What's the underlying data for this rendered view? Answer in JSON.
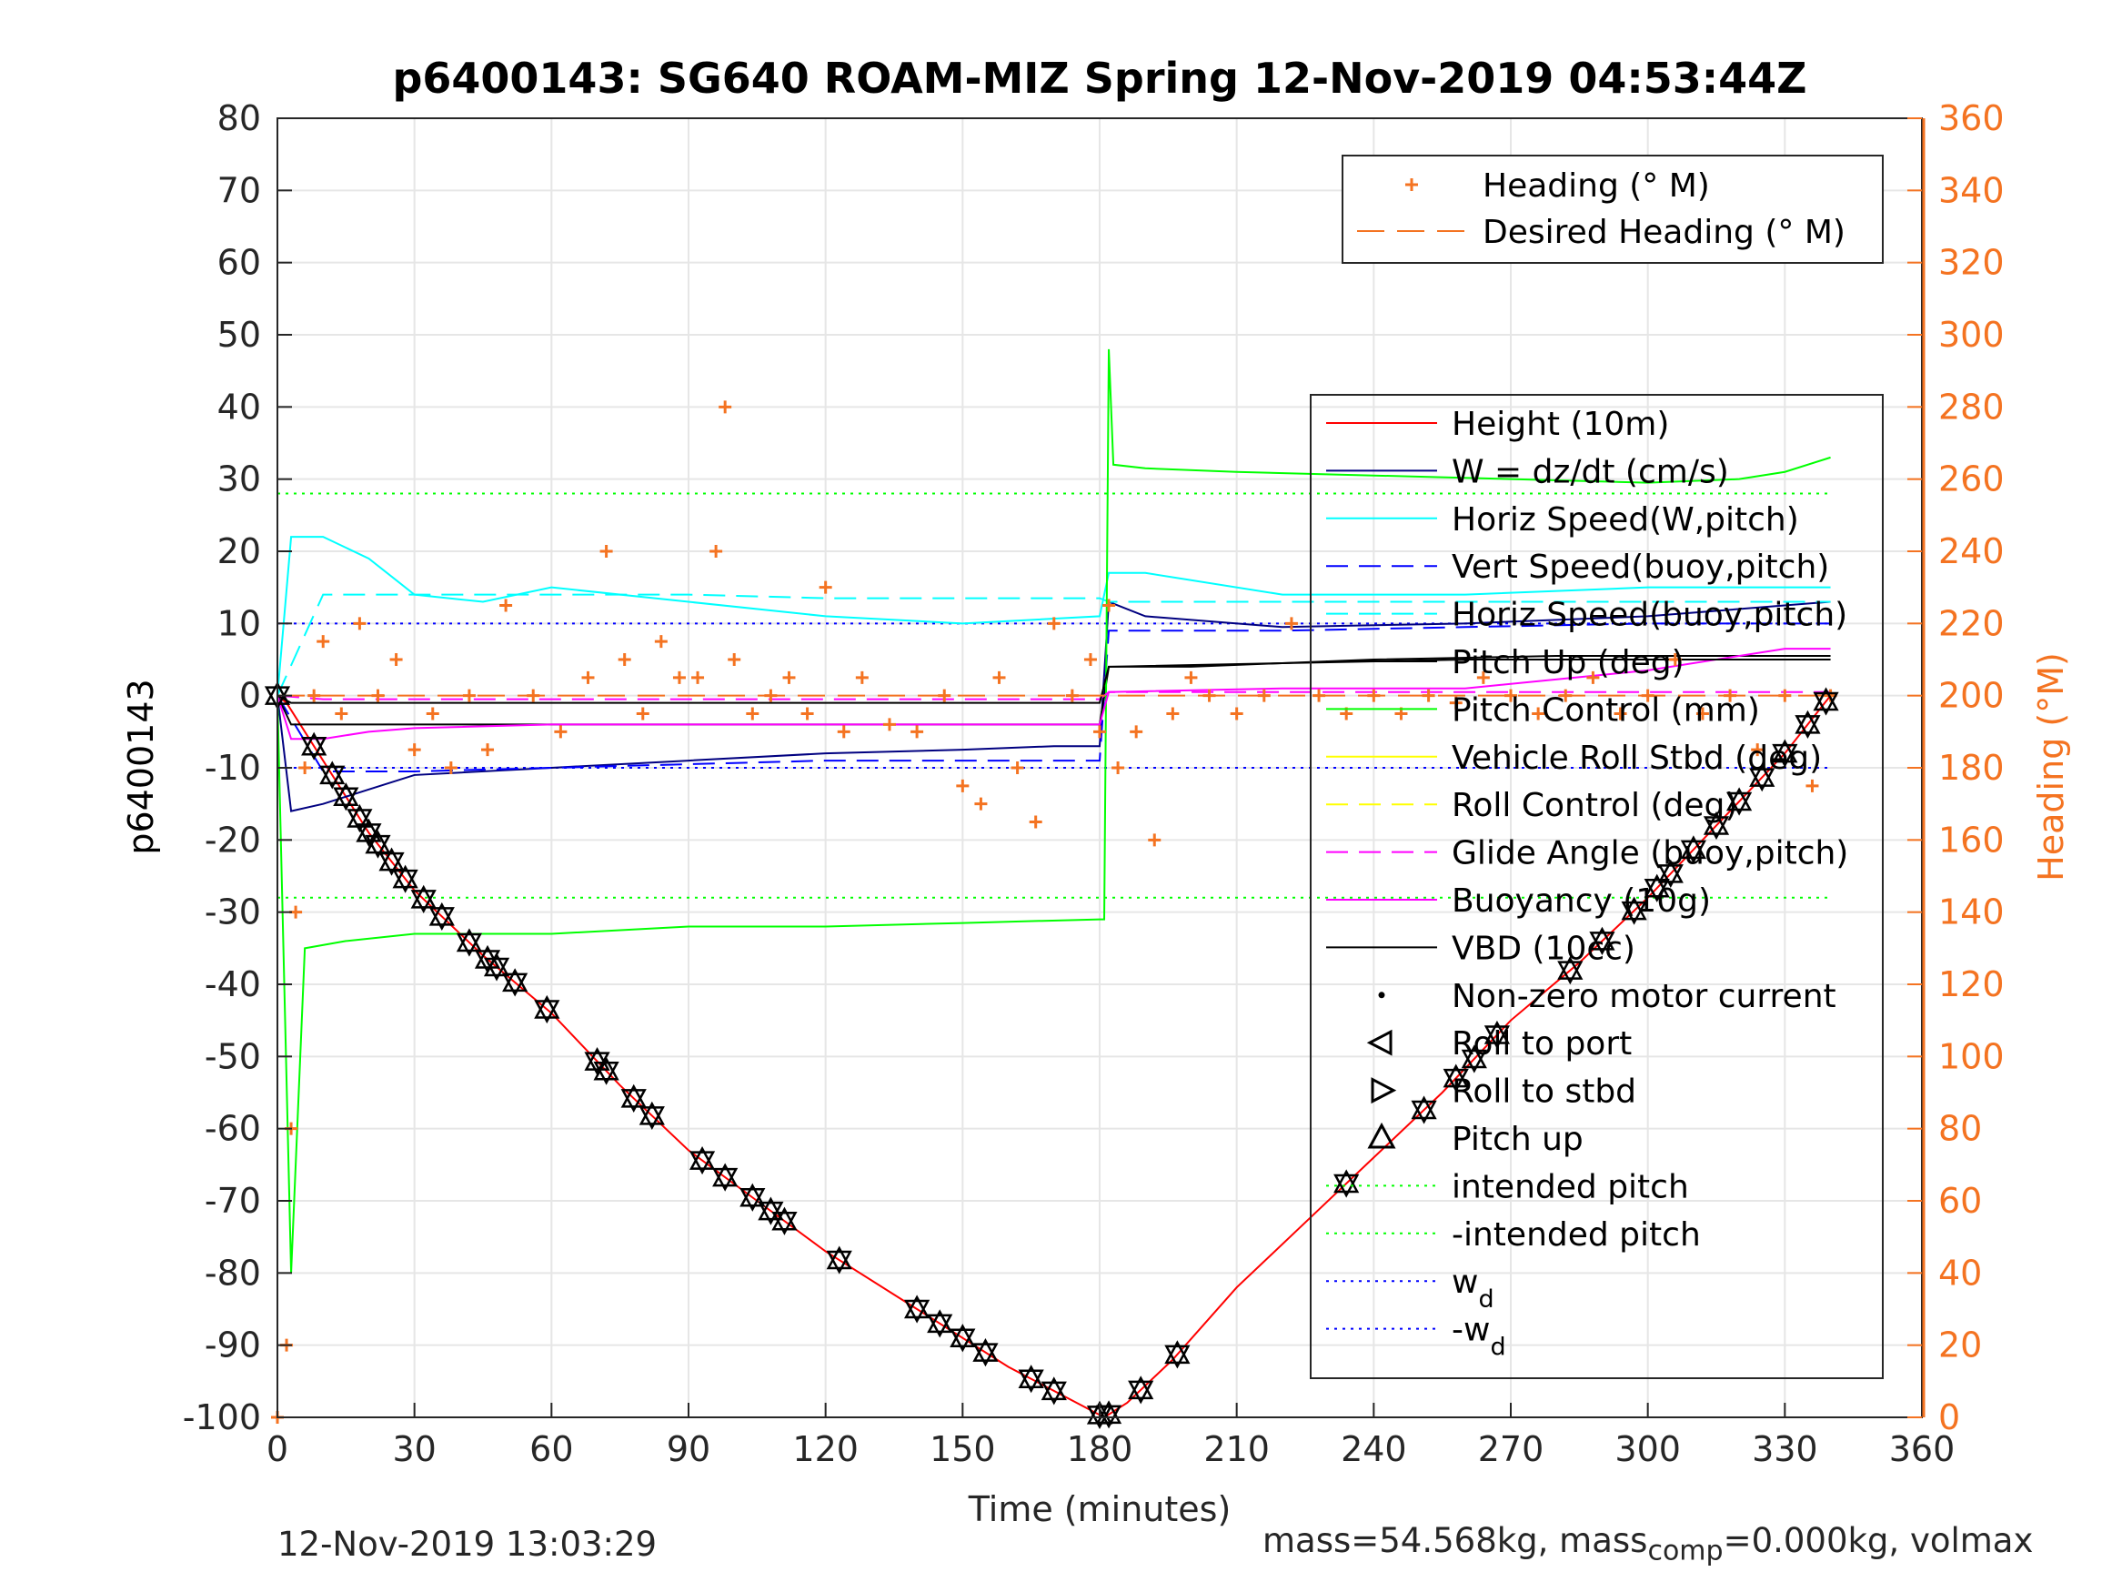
{
  "chart_data": {
    "type": "line",
    "title": "p6400143: SG640 ROAM-MIZ Spring 12-Nov-2019 04:53:44Z",
    "xlabel": "Time (minutes)",
    "ylabel": "p6400143",
    "y2label": "Heading (°M)",
    "xlim": [
      0,
      360
    ],
    "ylim": [
      -100,
      80
    ],
    "y2lim": [
      0,
      360
    ],
    "xticks": [
      "0",
      "30",
      "60",
      "90",
      "120",
      "150",
      "180",
      "210",
      "240",
      "270",
      "300",
      "330",
      "360"
    ],
    "yticks": [
      "80",
      "70",
      "60",
      "50",
      "40",
      "30",
      "20",
      "10",
      "0",
      "-10",
      "-20",
      "-30",
      "-40",
      "-50",
      "-60",
      "-70",
      "-80",
      "-90",
      "-100"
    ],
    "y2ticks": [
      "360",
      "340",
      "320",
      "300",
      "280",
      "260",
      "240",
      "220",
      "200",
      "180",
      "160",
      "140",
      "120",
      "100",
      "80",
      "60",
      "40",
      "20",
      "0"
    ],
    "grid": true,
    "legend_heading": {
      "placement": "top-right",
      "entries": [
        "Heading (° M)",
        "Desired Heading (° M)"
      ]
    },
    "legend_main": {
      "placement": "right",
      "entries": [
        {
          "label": "Height (10m)",
          "color": "#ff0000",
          "style": "solid"
        },
        {
          "label": "W = dz/dt (cm/s)",
          "color": "#000080",
          "style": "solid"
        },
        {
          "label": "Horiz Speed(W,pitch)",
          "color": "#00ffff",
          "style": "solid"
        },
        {
          "label": "Vert Speed(buoy,pitch)",
          "color": "#0000ff",
          "style": "dash"
        },
        {
          "label": "Horiz Speed(buoy,pitch)",
          "color": "#00ffff",
          "style": "dash"
        },
        {
          "label": "Pitch Up (deg)",
          "color": "#000000",
          "style": "solid"
        },
        {
          "label": "Pitch Control (mm)",
          "color": "#00ff00",
          "style": "solid"
        },
        {
          "label": "Vehicle Roll Stbd (deg)",
          "color": "#ffff00",
          "style": "solid"
        },
        {
          "label": "Roll Control (deg)",
          "color": "#ffff00",
          "style": "dash"
        },
        {
          "label": "Glide Angle (buoy,pitch)",
          "color": "#ff00ff",
          "style": "dash"
        },
        {
          "label": "Buoyancy (10g)",
          "color": "#ff00ff",
          "style": "solid"
        },
        {
          "label": "VBD (10cc)",
          "color": "#000000",
          "style": "solid"
        },
        {
          "label": "Non-zero motor current",
          "color": "#000000",
          "style": "dot"
        },
        {
          "label": "Roll to port",
          "color": "#000000",
          "style": "tri-left"
        },
        {
          "label": "Roll to stbd",
          "color": "#000000",
          "style": "tri-right"
        },
        {
          "label": "Pitch up",
          "color": "#000000",
          "style": "tri-up"
        },
        {
          "label": "intended pitch",
          "color": "#00ff00",
          "style": "dotted"
        },
        {
          "label": "-intended pitch",
          "color": "#00ff00",
          "style": "dotted"
        },
        {
          "label": "w",
          "sub": "d",
          "color": "#0000ff",
          "style": "dotted"
        },
        {
          "label": "-w",
          "sub": "d",
          "color": "#0000ff",
          "style": "dotted"
        }
      ]
    },
    "reference_lines": {
      "intended_pitch": 28,
      "neg_intended_pitch": -28,
      "w_d": 10,
      "neg_w_d": -10
    },
    "series": [
      {
        "name": "Height (10m)",
        "axis": "left",
        "x": [
          0,
          2,
          10,
          20,
          30,
          45,
          60,
          75,
          90,
          105,
          120,
          140,
          160,
          175,
          181,
          186,
          196,
          210,
          225,
          240,
          255,
          270,
          285,
          300,
          315,
          330,
          340
        ],
        "y": [
          0,
          -1,
          -9,
          -19,
          -27,
          -36,
          -44,
          -54,
          -63,
          -70,
          -77,
          -85,
          -93,
          -98,
          -100,
          -98,
          -92,
          -82,
          -73,
          -64,
          -55,
          -45,
          -37,
          -28,
          -18,
          -8,
          0
        ]
      },
      {
        "name": "W = dz/dt (cm/s)",
        "axis": "left",
        "x": [
          0,
          3,
          10,
          20,
          30,
          60,
          90,
          120,
          150,
          170,
          180,
          182,
          190,
          220,
          260,
          300,
          340
        ],
        "y": [
          0,
          -16,
          -15,
          -13,
          -11,
          -10,
          -9,
          -8,
          -7.5,
          -7,
          -7,
          13,
          11,
          9.5,
          10,
          11,
          13
        ]
      },
      {
        "name": "Horiz Speed(W,pitch)",
        "axis": "left",
        "x": [
          0,
          3,
          10,
          20,
          30,
          45,
          60,
          90,
          120,
          150,
          180,
          182,
          190,
          220,
          260,
          300,
          340
        ],
        "y": [
          0,
          22,
          22,
          19,
          14,
          13,
          15,
          13,
          11,
          10,
          11,
          17,
          17,
          14,
          14,
          15,
          15
        ]
      },
      {
        "name": "Vert Speed(buoy,pitch)",
        "axis": "left",
        "x": [
          0,
          10,
          30,
          60,
          90,
          120,
          150,
          180,
          182,
          220,
          260,
          300,
          340
        ],
        "y": [
          0,
          -10.5,
          -10.5,
          -10,
          -9.5,
          -9,
          -9,
          -9,
          9,
          9,
          9.5,
          10,
          10
        ]
      },
      {
        "name": "Horiz Speed(buoy,pitch)",
        "axis": "left",
        "x": [
          0,
          10,
          30,
          60,
          90,
          120,
          150,
          180,
          182,
          220,
          260,
          300,
          340
        ],
        "y": [
          0,
          14,
          14,
          14,
          14,
          13.5,
          13.5,
          13.5,
          13,
          13,
          13,
          13,
          13
        ]
      },
      {
        "name": "Pitch Up (deg)",
        "axis": "left",
        "x": [
          0,
          3,
          60,
          120,
          160,
          180,
          182,
          200,
          240,
          280,
          320,
          340
        ],
        "y": [
          0,
          -4,
          -4,
          -4,
          -4,
          -4,
          4,
          4,
          5,
          5.5,
          5.5,
          5.5
        ]
      },
      {
        "name": "Pitch Control (mm)",
        "axis": "left",
        "x": [
          0,
          3,
          6,
          15,
          30,
          60,
          90,
          120,
          150,
          180,
          181,
          182,
          183,
          190,
          210,
          240,
          270,
          300,
          320,
          330,
          340
        ],
        "y": [
          0,
          -80,
          -35,
          -34,
          -33,
          -33,
          -32,
          -32,
          -31.5,
          -31,
          -31,
          48,
          32,
          31.5,
          31,
          30.5,
          30,
          29.5,
          30,
          31,
          33
        ]
      },
      {
        "name": "Glide Angle (buoy,pitch)",
        "axis": "left",
        "x": [
          0,
          10,
          30,
          60,
          120,
          180,
          182,
          240,
          300,
          340
        ],
        "y": [
          0,
          -0.5,
          -0.5,
          -0.5,
          -0.5,
          -0.5,
          0.5,
          0.5,
          0.5,
          0.5
        ]
      },
      {
        "name": "Buoyancy (10g)",
        "axis": "left",
        "x": [
          0,
          3,
          10,
          20,
          30,
          60,
          120,
          180,
          182,
          220,
          260,
          300,
          330,
          340
        ],
        "y": [
          0,
          -6,
          -6,
          -5,
          -4.5,
          -4,
          -4,
          -4,
          0.5,
          1,
          1,
          3.5,
          6.5,
          6.5
        ]
      },
      {
        "name": "VBD (10cc)",
        "axis": "left",
        "x": [
          0,
          3,
          60,
          120,
          160,
          180,
          182,
          220,
          260,
          300,
          340
        ],
        "y": [
          0,
          -1,
          -1,
          -1,
          -1,
          -1,
          4,
          4.5,
          5,
          5,
          5
        ]
      },
      {
        "name": "Heading (° M)",
        "axis": "right",
        "x": [
          0,
          2,
          3,
          4,
          6,
          8,
          10,
          14,
          18,
          22,
          26,
          30,
          34,
          38,
          42,
          46,
          50,
          56,
          62,
          68,
          72,
          76,
          80,
          84,
          88,
          92,
          96,
          98,
          100,
          104,
          108,
          112,
          116,
          120,
          124,
          128,
          134,
          140,
          146,
          150,
          154,
          158,
          162,
          166,
          170,
          174,
          178,
          180,
          182,
          184,
          188,
          192,
          196,
          200,
          204,
          210,
          216,
          222,
          228,
          234,
          240,
          246,
          252,
          258,
          264,
          270,
          276,
          282,
          288,
          294,
          300,
          306,
          312,
          318,
          324,
          330,
          336,
          340
        ],
        "y": [
          0,
          20,
          80,
          140,
          180,
          200,
          215,
          195,
          220,
          200,
          210,
          185,
          195,
          180,
          200,
          185,
          225,
          200,
          190,
          205,
          240,
          210,
          195,
          215,
          205,
          205,
          240,
          280,
          210,
          195,
          200,
          205,
          195,
          230,
          190,
          205,
          192,
          190,
          200,
          175,
          170,
          205,
          180,
          165,
          220,
          200,
          210,
          190,
          225,
          180,
          190,
          160,
          195,
          205,
          200,
          195,
          200,
          220,
          200,
          195,
          200,
          195,
          200,
          198,
          205,
          200,
          195,
          200,
          205,
          195,
          200,
          210,
          195,
          200,
          185,
          200,
          175,
          200
        ]
      },
      {
        "name": "Desired Heading (° M)",
        "axis": "right",
        "x": [
          0,
          340
        ],
        "y": [
          200,
          200
        ]
      }
    ],
    "motor_events": {
      "pitch_up_x": [
        0,
        8,
        12,
        15,
        18,
        20,
        22,
        25,
        28,
        32,
        36,
        42,
        46,
        48,
        52,
        59,
        70,
        72,
        78,
        82,
        93,
        98,
        104,
        108,
        111,
        123,
        140,
        145,
        150,
        155,
        165,
        170,
        180,
        182,
        189,
        197,
        234,
        251,
        258,
        262,
        267,
        283,
        290,
        297,
        302,
        305,
        310,
        315,
        320,
        325,
        330,
        335,
        339
      ]
    }
  },
  "footer": {
    "timestamp": "12-Nov-2019 13:03:29",
    "mass_prefix": "mass=54.568kg, mass",
    "mass_sub": "comp",
    "mass_suffix": "=0.000kg, volmax"
  },
  "colors": {
    "heading_axis": "#f47321",
    "axis": "#262626",
    "grid": "#e6e6e6"
  }
}
